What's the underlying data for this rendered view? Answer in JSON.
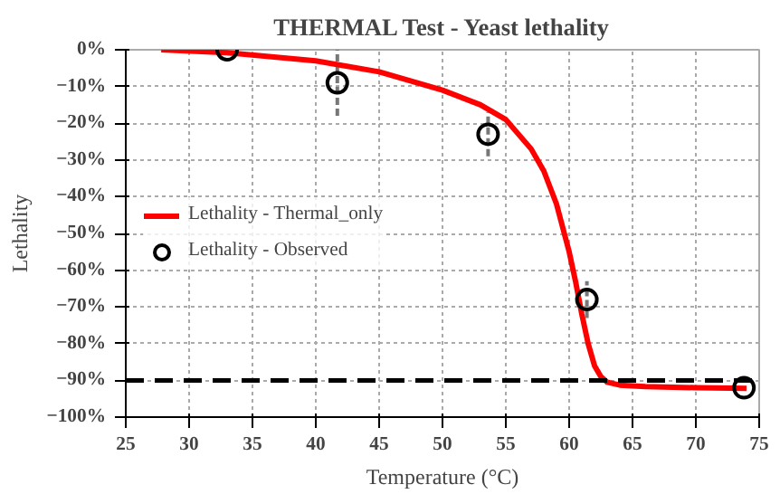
{
  "chart_data": {
    "type": "line",
    "title": "THERMAL Test - Yeast lethality",
    "xlabel": "Temperature (°C)",
    "ylabel": "Lethality",
    "series": [
      {
        "name": "Lethality - Thermal_only",
        "color": "#ff0000",
        "marker": "none",
        "line_style": "solid",
        "x": [
          27.8,
          33,
          40,
          45,
          50,
          53,
          55,
          57,
          58,
          59,
          60,
          60.5,
          61,
          61.5,
          62,
          62.5,
          63,
          64,
          66,
          70,
          74
        ],
        "values": [
          0,
          -0.8,
          -3,
          -6,
          -11,
          -15,
          -19,
          -27,
          -33,
          -42,
          -55,
          -63,
          -72,
          -80,
          -86,
          -89,
          -90.5,
          -91.3,
          -91.7,
          -92,
          -92.2
        ]
      },
      {
        "name": "Lethality - Observed",
        "type": "scatter",
        "color": "#000000",
        "marker": "circle",
        "x": [
          33,
          41.7,
          53.6,
          61.4,
          73.8
        ],
        "values": [
          0,
          -9,
          -23,
          -68,
          -92
        ],
        "errors": [
          null,
          9,
          6,
          5,
          null
        ]
      }
    ],
    "ref_lines": [
      {
        "axis": "y",
        "value": -90,
        "color": "#000000",
        "line_style": "dashed"
      }
    ],
    "xlim": [
      25,
      75
    ],
    "xticks": [
      25,
      30,
      35,
      40,
      45,
      50,
      55,
      60,
      65,
      70,
      75
    ],
    "ylim": [
      -100,
      0
    ],
    "yticks": [
      {
        "value": 0,
        "label": "0%"
      },
      {
        "value": -10,
        "label": "−10%"
      },
      {
        "value": -20,
        "label": "−20%"
      },
      {
        "value": -30,
        "label": "−30%"
      },
      {
        "value": -40,
        "label": "−40%"
      },
      {
        "value": -50,
        "label": "−50%"
      },
      {
        "value": -60,
        "label": "−60%"
      },
      {
        "value": -70,
        "label": "−70%"
      },
      {
        "value": -80,
        "label": "−80%"
      },
      {
        "value": -90,
        "label": "−90%"
      },
      {
        "value": -100,
        "label": "−100%"
      }
    ],
    "grid": true,
    "legend": "left"
  }
}
